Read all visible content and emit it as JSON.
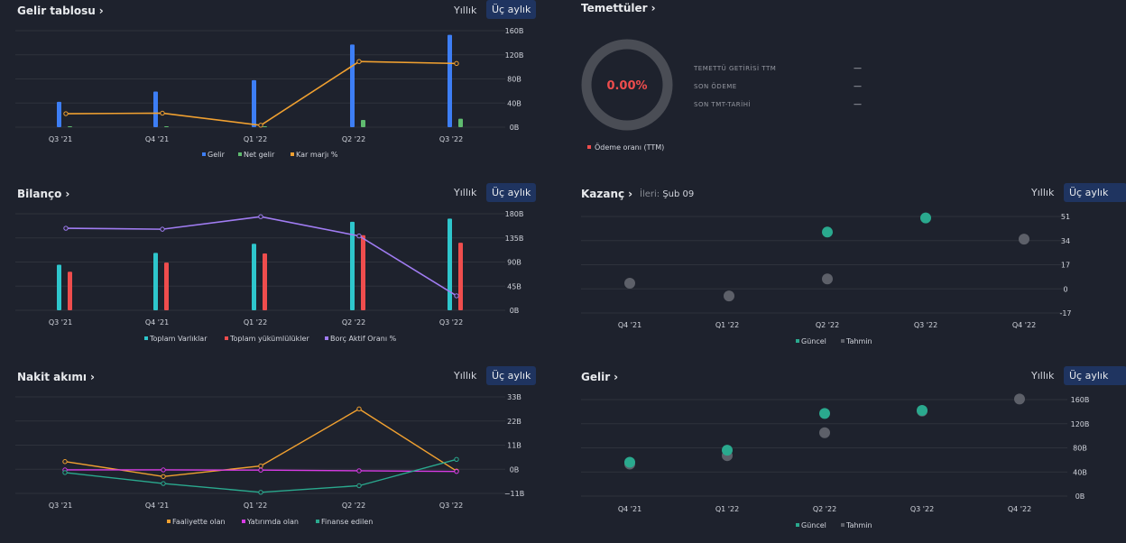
{
  "colors": {
    "bg": "#1e222d",
    "grid": "#2e323c",
    "blue": "#3d7ef5",
    "green": "#5fbb6f",
    "orange": "#f0a030",
    "teal": "#2ec6cc",
    "red": "#ef4d4d",
    "purple": "#a07cf2",
    "magenta": "#d83be5",
    "seaGreen": "#2aa98e",
    "grayDot": "#5d6069",
    "active": "#1f3460"
  },
  "period": {
    "annual": "Yıllık",
    "quarterly": "Üç aylık"
  },
  "income": {
    "title": "Gelir tablosu"
  },
  "dividends": {
    "title": "Temettüler"
  },
  "balance": {
    "title": "Bilanço"
  },
  "earnings": {
    "title": "Kazanç",
    "next_label": "İleri:",
    "next_date": "Şub 09"
  },
  "cashflow": {
    "title": "Nakit akımı"
  },
  "revenue": {
    "title": "Gelir"
  },
  "chart_data": [
    {
      "id": "income",
      "type": "bar",
      "title": "Gelir tablosu",
      "categories": [
        "Q3 '21",
        "Q4 '21",
        "Q1 '22",
        "Q2 '22",
        "Q3 '22"
      ],
      "yticks": [
        "160B",
        "120B",
        "80B",
        "40B",
        "0B"
      ],
      "ylim": [
        0,
        160
      ],
      "series": [
        {
          "name": "Gelir",
          "kind": "bar",
          "color": "#3d7ef5",
          "values": [
            42,
            59,
            78,
            137,
            153
          ]
        },
        {
          "name": "Net gelir",
          "kind": "bar",
          "color": "#5fbb6f",
          "values": [
            1,
            1,
            1,
            12,
            14
          ]
        },
        {
          "name": "Kar marjı %",
          "kind": "line",
          "color": "#f0a030",
          "scale": "pct",
          "values": [
            14,
            14.5,
            2,
            68,
            66
          ]
        }
      ]
    },
    {
      "id": "dividends",
      "type": "pie",
      "center_text": "0.00%",
      "legend": [
        "Ödeme oranı (TTM)"
      ],
      "rows": [
        {
          "label": "TEMETTÜ GETİRİSİ TTM",
          "value": "—"
        },
        {
          "label": "SON ÖDEME",
          "value": "—"
        },
        {
          "label": "SON TMT-TARİHİ",
          "value": "—"
        }
      ]
    },
    {
      "id": "balance",
      "type": "bar",
      "title": "Bilanço",
      "categories": [
        "Q3 '21",
        "Q4 '21",
        "Q1 '22",
        "Q2 '22",
        "Q3 '22"
      ],
      "yticks": [
        "180B",
        "135B",
        "90B",
        "45B",
        "0B"
      ],
      "ylim": [
        0,
        180
      ],
      "series": [
        {
          "name": "Toplam Varlıklar",
          "kind": "bar",
          "color": "#2ec6cc",
          "values": [
            85,
            107,
            124,
            165,
            171
          ]
        },
        {
          "name": "Toplam yükümlülükler",
          "kind": "bar",
          "color": "#ef4d4d",
          "values": [
            72,
            89,
            106,
            140,
            126
          ]
        },
        {
          "name": "Borç Aktif Oranı %",
          "kind": "line",
          "color": "#a07cf2",
          "scale": "pct",
          "values": [
            85,
            84,
            97,
            77,
            15
          ]
        }
      ]
    },
    {
      "id": "earnings",
      "type": "scatter",
      "title": "Kazanç",
      "categories": [
        "Q4 '21",
        "Q1 '22",
        "Q2 '22",
        "Q3 '22",
        "Q4 '22"
      ],
      "yticks": [
        "51",
        "34",
        "17",
        "0",
        "-17"
      ],
      "ylim": [
        -17,
        51
      ],
      "series": [
        {
          "name": "Güncel",
          "color": "#2aa98e",
          "values": [
            null,
            null,
            40,
            50,
            null
          ]
        },
        {
          "name": "Tahmin",
          "color": "#5d6069",
          "values": [
            4,
            -5,
            7,
            null,
            35
          ]
        }
      ]
    },
    {
      "id": "cashflow",
      "type": "line",
      "title": "Nakit akımı",
      "categories": [
        "Q3 '21",
        "Q4 '21",
        "Q1 '22",
        "Q2 '22",
        "Q3 '22"
      ],
      "yticks": [
        "33B",
        "22B",
        "11B",
        "0B",
        "−11B"
      ],
      "ylim": [
        -11,
        33
      ],
      "series": [
        {
          "name": "Faaliyette olan",
          "color": "#f0a030",
          "values": [
            3.5,
            -3.3,
            1.5,
            27.5,
            -0.8
          ]
        },
        {
          "name": "Yatırımda olan",
          "color": "#d83be5",
          "values": [
            -0.3,
            -0.3,
            -0.4,
            -0.7,
            -1
          ]
        },
        {
          "name": "Finanse edilen",
          "color": "#2aa98e",
          "values": [
            -1.5,
            -6.5,
            -10.5,
            -7.5,
            4.5
          ]
        }
      ]
    },
    {
      "id": "revenue",
      "type": "scatter",
      "title": "Gelir",
      "categories": [
        "Q4 '21",
        "Q1 '22",
        "Q2 '22",
        "Q3 '22",
        "Q4 '22"
      ],
      "yticks": [
        "160B",
        "120B",
        "80B",
        "40B",
        "0B"
      ],
      "ylim": [
        0,
        160
      ],
      "series": [
        {
          "name": "Güncel",
          "color": "#2aa98e",
          "values": [
            56,
            76,
            137,
            142,
            null
          ]
        },
        {
          "name": "Tahmin",
          "color": "#5d6069",
          "values": [
            53,
            67,
            105,
            141,
            161
          ]
        }
      ]
    }
  ]
}
